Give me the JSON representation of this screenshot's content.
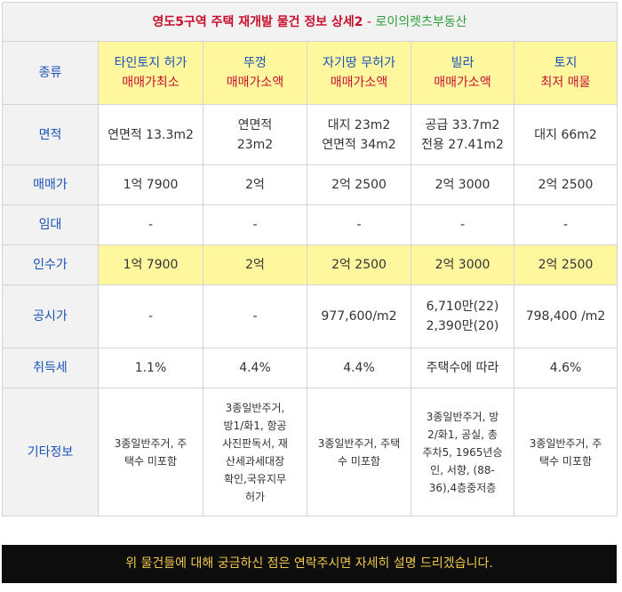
{
  "title": {
    "main": "영도5구역 주택 재개발 물건 정보 상세2",
    "sep": " - ",
    "agency": "로이의렛츠부동산"
  },
  "row_labels": {
    "kind": "종류",
    "area": "면적",
    "price": "매매가",
    "rent": "임대",
    "takeover": "인수가",
    "notice": "공시가",
    "tax": "취득세",
    "etc": "기타정보"
  },
  "columns": [
    {
      "type": "타인토지 허가",
      "tag": "매매가최소",
      "area_l1": "연면적 13.3m2",
      "area_l2": "",
      "price": "1억 7900",
      "rent": "-",
      "takeover": "1억 7900",
      "notice_l1": "-",
      "notice_l2": "",
      "tax": "1.1%",
      "etc_lines": [
        "3종일반주거, 주",
        "택수 미포함"
      ]
    },
    {
      "type": "뚜껑",
      "tag": "매매가소액",
      "area_l1": "연면적",
      "area_l2": "23m2",
      "price": "2억",
      "rent": "-",
      "takeover": "2억",
      "notice_l1": "-",
      "notice_l2": "",
      "tax": "4.4%",
      "etc_lines": [
        "3종일반주거,",
        "방1/화1, 항공",
        "사진판독서, 재",
        "산세과세대장",
        "확인,국유지무",
        "허가"
      ]
    },
    {
      "type": "자기땅 무허가",
      "tag": "매매가소액",
      "area_l1": "대지 23m2",
      "area_l2": "연면적 34m2",
      "price": "2억 2500",
      "rent": "-",
      "takeover": "2억 2500",
      "notice_l1": "977,600/m2",
      "notice_l2": "",
      "tax": "4.4%",
      "etc_lines": [
        "3종일반주거, 주택",
        "수 미포함"
      ]
    },
    {
      "type": "빌라",
      "tag": "매매가소액",
      "area_l1": "공급 33.7m2",
      "area_l2": "전용 27.41m2",
      "price": "2억 3000",
      "rent": "-",
      "takeover": "2억 3000",
      "notice_l1": "6,710만(22)",
      "notice_l2": "2,390만(20)",
      "tax": "주택수에 따라",
      "etc_lines": [
        "3종일반주거, 방",
        "2/화1, 공실, 총",
        "주차5, 1965년승",
        "인, 서향, (88-",
        "36),4층중저층"
      ]
    },
    {
      "type": "토지",
      "tag": "최저 매물",
      "area_l1": "대지 66m2",
      "area_l2": "",
      "price": "2억 2500",
      "rent": "-",
      "takeover": "2억 2500",
      "notice_l1": "798,400 /m2",
      "notice_l2": "",
      "tax": "4.6%",
      "etc_lines": [
        "3종일반주거, 주",
        "택수 미포함"
      ]
    }
  ],
  "footer_notice": "위 물건들에 대해 궁금하신 점은 연락주시면 자세히 설명 드리겠습니다.",
  "colors": {
    "label_blue": "#1a52b8",
    "accent_red": "#c8102e",
    "agency_green": "#2e9e3c",
    "highlight_yellow": "#fff79e",
    "footer_bg": "#0d0d0d",
    "footer_text": "#f2c94c"
  }
}
